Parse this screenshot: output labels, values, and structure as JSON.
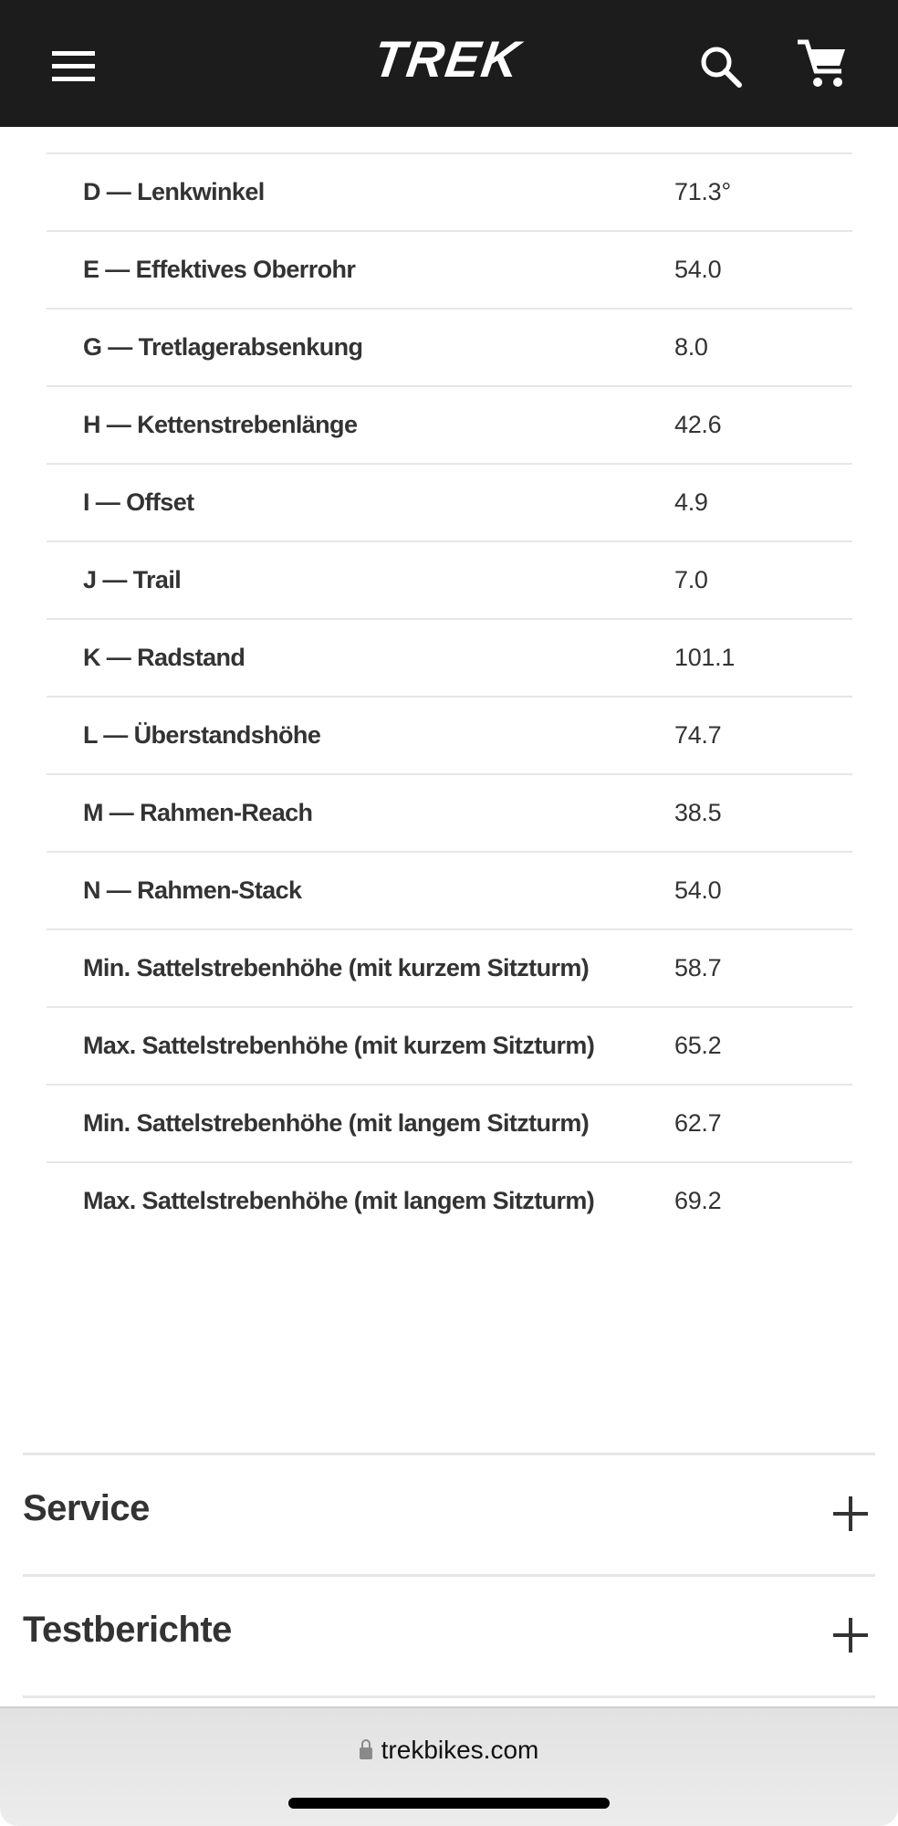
{
  "header": {
    "logo_text": "TREK",
    "background": "#1c1c1c"
  },
  "geometry_table": {
    "rows": [
      {
        "label": "D — Lenkwinkel",
        "value": "71.3°"
      },
      {
        "label": "E — Effektives Oberrohr",
        "value": "54.0"
      },
      {
        "label": "G — Tretlagerabsenkung",
        "value": "8.0"
      },
      {
        "label": "H — Kettenstrebenlänge",
        "value": "42.6"
      },
      {
        "label": "I — Offset",
        "value": "4.9"
      },
      {
        "label": "J — Trail",
        "value": "7.0"
      },
      {
        "label": "K — Radstand",
        "value": "101.1"
      },
      {
        "label": "L — Überstandshöhe",
        "value": "74.7"
      },
      {
        "label": "M — Rahmen-Reach",
        "value": "38.5"
      },
      {
        "label": "N — Rahmen-Stack",
        "value": "54.0"
      },
      {
        "label": "Min. Sattelstrebenhöhe (mit kurzem Sitzturm)",
        "value": "58.7"
      },
      {
        "label": "Max. Sattelstrebenhöhe (mit kurzem Sitzturm)",
        "value": "65.2"
      },
      {
        "label": "Min. Sattelstrebenhöhe (mit langem Sitzturm)",
        "value": "62.7"
      },
      {
        "label": "Max. Sattelstrebenhöhe (mit langem Sitzturm)",
        "value": "69.2"
      }
    ]
  },
  "sections": [
    {
      "title": "Service",
      "icon": "plus-icon"
    },
    {
      "title": "Testberichte",
      "icon": "plus-icon"
    }
  ],
  "browser": {
    "url": "trekbikes.com",
    "icon": "lock-icon"
  }
}
